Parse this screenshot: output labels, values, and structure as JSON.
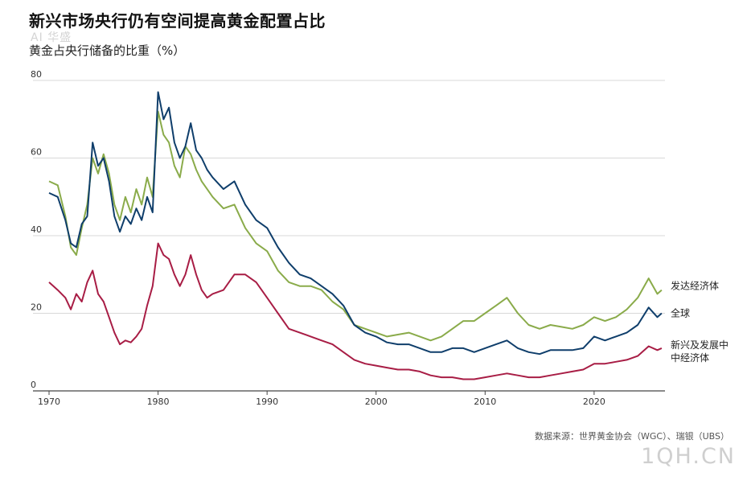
{
  "header": {
    "title": "新兴市场央行仍有空间提高黄金配置占比",
    "watermark_top": "AI 华盛"
  },
  "footer": {
    "source": "数据来源：世界黄金协会（WGC）、瑞银（UBS）",
    "watermark": "1QH.CN"
  },
  "colors": {
    "developed": "#8aab4a",
    "global": "#0f3e6b",
    "emerging": "#a81d45",
    "grid": "#d8d8d8",
    "axis": "#444444"
  },
  "chart_data": {
    "type": "line",
    "title": "新兴市场央行仍有空间提高黄金配置占比",
    "subtitle": "黄金占央行储备的比重（%）",
    "xlabel": "",
    "ylabel": "",
    "xlim": [
      1970,
      2026.5
    ],
    "ylim": [
      0,
      80
    ],
    "x_ticks": [
      1970,
      1980,
      1990,
      2000,
      2010,
      2020
    ],
    "y_ticks": [
      0,
      20,
      40,
      60,
      80
    ],
    "grid": "horizontal",
    "legend": "inline labels at right end of lines",
    "series": [
      {
        "name": "发达经济体",
        "color_key": "developed",
        "points": [
          [
            1970,
            54
          ],
          [
            1970.8,
            53
          ],
          [
            1971.5,
            45
          ],
          [
            1972,
            37
          ],
          [
            1972.5,
            35
          ],
          [
            1973,
            42
          ],
          [
            1973.5,
            48
          ],
          [
            1974,
            60
          ],
          [
            1974.5,
            56
          ],
          [
            1975,
            61
          ],
          [
            1975.5,
            56
          ],
          [
            1976,
            48
          ],
          [
            1976.5,
            44
          ],
          [
            1977,
            50
          ],
          [
            1977.5,
            46
          ],
          [
            1978,
            52
          ],
          [
            1978.5,
            48
          ],
          [
            1979,
            55
          ],
          [
            1979.5,
            50
          ],
          [
            1980,
            72
          ],
          [
            1980.5,
            66
          ],
          [
            1981,
            64
          ],
          [
            1981.5,
            58
          ],
          [
            1982,
            55
          ],
          [
            1982.5,
            63
          ],
          [
            1983,
            61
          ],
          [
            1983.5,
            57
          ],
          [
            1984,
            54
          ],
          [
            1984.5,
            52
          ],
          [
            1985,
            50
          ],
          [
            1986,
            47
          ],
          [
            1987,
            48
          ],
          [
            1988,
            42
          ],
          [
            1989,
            38
          ],
          [
            1990,
            36
          ],
          [
            1991,
            31
          ],
          [
            1992,
            28
          ],
          [
            1993,
            27
          ],
          [
            1994,
            27
          ],
          [
            1995,
            26
          ],
          [
            1996,
            23
          ],
          [
            1997,
            21
          ],
          [
            1998,
            17
          ],
          [
            1999,
            16
          ],
          [
            2000,
            15
          ],
          [
            2001,
            14
          ],
          [
            2002,
            14.5
          ],
          [
            2003,
            15
          ],
          [
            2004,
            14
          ],
          [
            2005,
            13
          ],
          [
            2006,
            14
          ],
          [
            2007,
            16
          ],
          [
            2008,
            18
          ],
          [
            2009,
            18
          ],
          [
            2010,
            20
          ],
          [
            2011,
            22
          ],
          [
            2012,
            24
          ],
          [
            2013,
            20
          ],
          [
            2014,
            17
          ],
          [
            2015,
            16
          ],
          [
            2016,
            17
          ],
          [
            2017,
            16.5
          ],
          [
            2018,
            16
          ],
          [
            2019,
            17
          ],
          [
            2020,
            19
          ],
          [
            2021,
            18
          ],
          [
            2022,
            19
          ],
          [
            2023,
            21
          ],
          [
            2024,
            24
          ],
          [
            2025,
            29
          ],
          [
            2025.8,
            25
          ],
          [
            2026.2,
            26
          ]
        ]
      },
      {
        "name": "全球",
        "color_key": "global",
        "points": [
          [
            1970,
            51
          ],
          [
            1970.8,
            50
          ],
          [
            1971.5,
            44
          ],
          [
            1972,
            38
          ],
          [
            1972.5,
            37
          ],
          [
            1973,
            43
          ],
          [
            1973.5,
            45
          ],
          [
            1974,
            64
          ],
          [
            1974.5,
            58
          ],
          [
            1975,
            60
          ],
          [
            1975.5,
            54
          ],
          [
            1976,
            45
          ],
          [
            1976.5,
            41
          ],
          [
            1977,
            45
          ],
          [
            1977.5,
            43
          ],
          [
            1978,
            47
          ],
          [
            1978.5,
            44
          ],
          [
            1979,
            50
          ],
          [
            1979.5,
            46
          ],
          [
            1980,
            77
          ],
          [
            1980.5,
            70
          ],
          [
            1981,
            73
          ],
          [
            1981.5,
            64
          ],
          [
            1982,
            60
          ],
          [
            1982.5,
            63
          ],
          [
            1983,
            69
          ],
          [
            1983.5,
            62
          ],
          [
            1984,
            60
          ],
          [
            1984.5,
            57
          ],
          [
            1985,
            55
          ],
          [
            1986,
            52
          ],
          [
            1987,
            54
          ],
          [
            1988,
            48
          ],
          [
            1989,
            44
          ],
          [
            1990,
            42
          ],
          [
            1991,
            37
          ],
          [
            1992,
            33
          ],
          [
            1993,
            30
          ],
          [
            1994,
            29
          ],
          [
            1995,
            27
          ],
          [
            1996,
            25
          ],
          [
            1997,
            22
          ],
          [
            1998,
            17
          ],
          [
            1999,
            15
          ],
          [
            2000,
            14
          ],
          [
            2001,
            12.5
          ],
          [
            2002,
            12
          ],
          [
            2003,
            12
          ],
          [
            2004,
            11
          ],
          [
            2005,
            10
          ],
          [
            2006,
            10
          ],
          [
            2007,
            11
          ],
          [
            2008,
            11
          ],
          [
            2009,
            10
          ],
          [
            2010,
            11
          ],
          [
            2011,
            12
          ],
          [
            2012,
            13
          ],
          [
            2013,
            11
          ],
          [
            2014,
            10
          ],
          [
            2015,
            9.5
          ],
          [
            2016,
            10.5
          ],
          [
            2017,
            10.5
          ],
          [
            2018,
            10.5
          ],
          [
            2019,
            11
          ],
          [
            2020,
            14
          ],
          [
            2021,
            13
          ],
          [
            2022,
            14
          ],
          [
            2023,
            15
          ],
          [
            2024,
            17
          ],
          [
            2025,
            21.5
          ],
          [
            2025.8,
            19
          ],
          [
            2026.2,
            20
          ]
        ]
      },
      {
        "name": "新兴及发展中经济体",
        "color_key": "emerging",
        "points": [
          [
            1970,
            28
          ],
          [
            1970.8,
            26
          ],
          [
            1971.5,
            24
          ],
          [
            1972,
            21
          ],
          [
            1972.5,
            25
          ],
          [
            1973,
            23
          ],
          [
            1973.5,
            28
          ],
          [
            1974,
            31
          ],
          [
            1974.5,
            25
          ],
          [
            1975,
            23
          ],
          [
            1975.5,
            19
          ],
          [
            1976,
            15
          ],
          [
            1976.5,
            12
          ],
          [
            1977,
            13
          ],
          [
            1977.5,
            12.5
          ],
          [
            1978,
            14
          ],
          [
            1978.5,
            16
          ],
          [
            1979,
            22
          ],
          [
            1979.5,
            27
          ],
          [
            1980,
            38
          ],
          [
            1980.5,
            35
          ],
          [
            1981,
            34
          ],
          [
            1981.5,
            30
          ],
          [
            1982,
            27
          ],
          [
            1982.5,
            30
          ],
          [
            1983,
            35
          ],
          [
            1983.5,
            30
          ],
          [
            1984,
            26
          ],
          [
            1984.5,
            24
          ],
          [
            1985,
            25
          ],
          [
            1986,
            26
          ],
          [
            1987,
            30
          ],
          [
            1988,
            30
          ],
          [
            1989,
            28
          ],
          [
            1990,
            24
          ],
          [
            1991,
            20
          ],
          [
            1992,
            16
          ],
          [
            1993,
            15
          ],
          [
            1994,
            14
          ],
          [
            1995,
            13
          ],
          [
            1996,
            12
          ],
          [
            1997,
            10
          ],
          [
            1998,
            8
          ],
          [
            1999,
            7
          ],
          [
            2000,
            6.5
          ],
          [
            2001,
            6
          ],
          [
            2002,
            5.5
          ],
          [
            2003,
            5.5
          ],
          [
            2004,
            5
          ],
          [
            2005,
            4
          ],
          [
            2006,
            3.5
          ],
          [
            2007,
            3.5
          ],
          [
            2008,
            3
          ],
          [
            2009,
            3
          ],
          [
            2010,
            3.5
          ],
          [
            2011,
            4
          ],
          [
            2012,
            4.5
          ],
          [
            2013,
            4
          ],
          [
            2014,
            3.5
          ],
          [
            2015,
            3.5
          ],
          [
            2016,
            4
          ],
          [
            2017,
            4.5
          ],
          [
            2018,
            5
          ],
          [
            2019,
            5.5
          ],
          [
            2020,
            7
          ],
          [
            2021,
            7
          ],
          [
            2022,
            7.5
          ],
          [
            2023,
            8
          ],
          [
            2024,
            9
          ],
          [
            2025,
            11.5
          ],
          [
            2025.8,
            10.5
          ],
          [
            2026.2,
            11
          ]
        ]
      }
    ],
    "series_labels": [
      {
        "key": "developed",
        "lines": [
          "发达经济体"
        ]
      },
      {
        "key": "global",
        "lines": [
          "全球"
        ]
      },
      {
        "key": "emerging",
        "lines": [
          "新兴及发展中",
          "中经济体"
        ]
      }
    ]
  }
}
